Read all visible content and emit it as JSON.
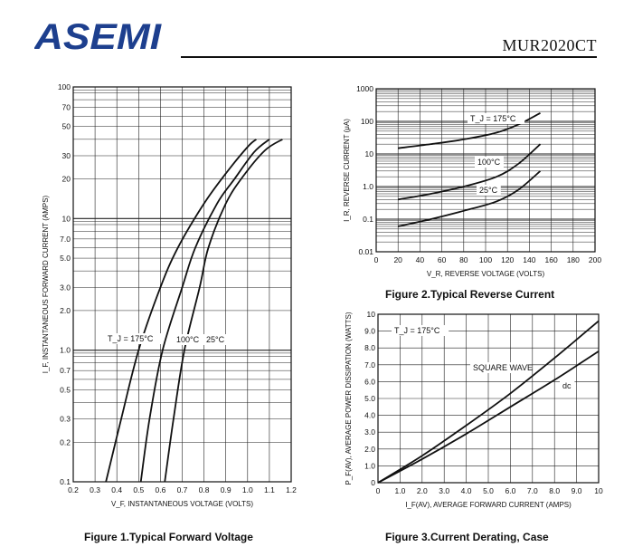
{
  "header": {
    "logo_text": "ASEMI",
    "part_number": "MUR2020CT"
  },
  "charts": [
    {
      "type": "line",
      "caption": "Figure 1.Typical Forward Voltage",
      "xlabel": "V_F, INSTANTANEOUS VOLTAGE (VOLTS)",
      "ylabel": "I_F, INSTANTANEOUS FORWARD CURRENT (AMPS)",
      "xlim": [
        0.2,
        1.2
      ],
      "ylim": [
        0.1,
        100
      ],
      "yscale": "log",
      "xticks": [
        "0.2",
        "0.3",
        "0.4",
        "0.5",
        "0.6",
        "0.7",
        "0.8",
        "0.9",
        "1.0",
        "1.1",
        "1.2"
      ],
      "yticks": [
        "100",
        "70",
        "50",
        "30",
        "20",
        "10",
        "7.0",
        "5.0",
        "3.0",
        "2.0",
        "1.0",
        "0.7",
        "0.5",
        "0.3",
        "0.2",
        "0.1"
      ],
      "series": [
        {
          "name": "T_J = 175°C",
          "points": [
            [
              0.35,
              0.1
            ],
            [
              0.42,
              0.3
            ],
            [
              0.5,
              1.0
            ],
            [
              0.6,
              3.0
            ],
            [
              0.68,
              6.0
            ],
            [
              0.8,
              13.0
            ],
            [
              0.9,
              22.0
            ],
            [
              1.0,
              35.0
            ],
            [
              1.04,
              40.0
            ]
          ]
        },
        {
          "name": "100°C",
          "points": [
            [
              0.51,
              0.1
            ],
            [
              0.55,
              0.3
            ],
            [
              0.61,
              1.0
            ],
            [
              0.7,
              3.0
            ],
            [
              0.76,
              6.0
            ],
            [
              0.86,
              13.0
            ],
            [
              0.94,
              20.0
            ],
            [
              1.03,
              32.0
            ],
            [
              1.1,
              40.0
            ]
          ]
        },
        {
          "name": "25°C",
          "points": [
            [
              0.62,
              0.1
            ],
            [
              0.66,
              0.3
            ],
            [
              0.71,
              1.0
            ],
            [
              0.78,
              3.0
            ],
            [
              0.82,
              6.0
            ],
            [
              0.9,
              13.0
            ],
            [
              0.98,
              21.0
            ],
            [
              1.08,
              33.0
            ],
            [
              1.16,
              40.0
            ]
          ]
        }
      ],
      "annotations": [
        "T_J = 175°C",
        "100°C",
        "25°C"
      ]
    },
    {
      "type": "line",
      "caption": "Figure 2.Typical Reverse Current",
      "xlabel": "V_R, REVERSE VOLTAGE (VOLTS)",
      "ylabel": "I_R, REVERSE CURRENT (μA)",
      "xlim": [
        0,
        200
      ],
      "ylim": [
        0.01,
        1000
      ],
      "yscale": "log",
      "xticks": [
        "0",
        "20",
        "40",
        "60",
        "80",
        "100",
        "120",
        "140",
        "160",
        "180",
        "200"
      ],
      "yticks": [
        "1000",
        "100",
        "10",
        "1.0",
        "0.1",
        "0.01"
      ],
      "series": [
        {
          "name": "T_J = 175°C",
          "points": [
            [
              20,
              15
            ],
            [
              50,
              20
            ],
            [
              80,
              28
            ],
            [
              110,
              45
            ],
            [
              130,
              80
            ],
            [
              150,
              180
            ]
          ]
        },
        {
          "name": "100°C",
          "points": [
            [
              20,
              0.4
            ],
            [
              50,
              0.6
            ],
            [
              80,
              1.0
            ],
            [
              110,
              2.0
            ],
            [
              130,
              5.0
            ],
            [
              150,
              20
            ]
          ]
        },
        {
          "name": "25°C",
          "points": [
            [
              20,
              0.06
            ],
            [
              50,
              0.1
            ],
            [
              80,
              0.18
            ],
            [
              110,
              0.35
            ],
            [
              130,
              0.8
            ],
            [
              150,
              3.0
            ]
          ]
        }
      ],
      "annotations": [
        "T_J = 175°C",
        "100°C",
        "25°C"
      ]
    },
    {
      "type": "line",
      "caption": "Figure 3.Current Derating, Case",
      "xlabel": "I_F(AV), AVERAGE FORWARD CURRENT (AMPS)",
      "ylabel": "P_F(AV), AVERAGE POWER DISSIPATION (WATTS)",
      "xlim": [
        0,
        10
      ],
      "ylim": [
        0,
        10
      ],
      "xticks": [
        "0",
        "1.0",
        "2.0",
        "3.0",
        "4.0",
        "5.0",
        "6.0",
        "7.0",
        "8.0",
        "9.0",
        "10"
      ],
      "yticks": [
        "10",
        "9.0",
        "8.0",
        "7.0",
        "6.0",
        "5.0",
        "4.0",
        "3.0",
        "2.0",
        "1.0",
        "0"
      ],
      "series": [
        {
          "name": "SQUARE WAVE",
          "points": [
            [
              0,
              0
            ],
            [
              2,
              1.6
            ],
            [
              4,
              3.4
            ],
            [
              6,
              5.3
            ],
            [
              8,
              7.4
            ],
            [
              10,
              9.6
            ]
          ]
        },
        {
          "name": "dc",
          "points": [
            [
              0,
              0
            ],
            [
              2,
              1.4
            ],
            [
              4,
              2.9
            ],
            [
              6,
              4.5
            ],
            [
              8,
              6.1
            ],
            [
              10,
              7.8
            ]
          ]
        }
      ],
      "annotations": [
        "T_J = 175°C",
        "SQUARE WAVE",
        "dc"
      ]
    }
  ],
  "chart_data": [
    {
      "type": "line",
      "title": "Figure 1.Typical Forward Voltage",
      "xlabel": "V_F, INSTANTANEOUS VOLTAGE (VOLTS)",
      "ylabel": "I_F, INSTANTANEOUS FORWARD CURRENT (AMPS)",
      "xlim": [
        0.2,
        1.2
      ],
      "ylim": [
        0.1,
        100
      ],
      "yscale": "log",
      "grid": true,
      "series": [
        {
          "name": "T_J = 175°C",
          "x": [
            0.35,
            0.42,
            0.5,
            0.6,
            0.68,
            0.8,
            0.9,
            1.0,
            1.04
          ],
          "y": [
            0.1,
            0.3,
            1.0,
            3.0,
            6.0,
            13.0,
            22.0,
            35.0,
            40.0
          ]
        },
        {
          "name": "100°C",
          "x": [
            0.51,
            0.55,
            0.61,
            0.7,
            0.76,
            0.86,
            0.94,
            1.03,
            1.1
          ],
          "y": [
            0.1,
            0.3,
            1.0,
            3.0,
            6.0,
            13.0,
            20.0,
            32.0,
            40.0
          ]
        },
        {
          "name": "25°C",
          "x": [
            0.62,
            0.66,
            0.71,
            0.78,
            0.82,
            0.9,
            0.98,
            1.08,
            1.16
          ],
          "y": [
            0.1,
            0.3,
            1.0,
            3.0,
            6.0,
            13.0,
            21.0,
            33.0,
            40.0
          ]
        }
      ]
    },
    {
      "type": "line",
      "title": "Figure 2.Typical Reverse Current",
      "xlabel": "V_R, REVERSE VOLTAGE (VOLTS)",
      "ylabel": "I_R, REVERSE CURRENT (μA)",
      "xlim": [
        0,
        200
      ],
      "ylim": [
        0.01,
        1000
      ],
      "yscale": "log",
      "grid": true,
      "series": [
        {
          "name": "T_J = 175°C",
          "x": [
            20,
            50,
            80,
            110,
            130,
            150
          ],
          "y": [
            15,
            20,
            28,
            45,
            80,
            180
          ]
        },
        {
          "name": "100°C",
          "x": [
            20,
            50,
            80,
            110,
            130,
            150
          ],
          "y": [
            0.4,
            0.6,
            1.0,
            2.0,
            5.0,
            20
          ]
        },
        {
          "name": "25°C",
          "x": [
            20,
            50,
            80,
            110,
            130,
            150
          ],
          "y": [
            0.06,
            0.1,
            0.18,
            0.35,
            0.8,
            3.0
          ]
        }
      ]
    },
    {
      "type": "line",
      "title": "Figure 3.Current Derating, Case",
      "xlabel": "I_F(AV), AVERAGE FORWARD CURRENT (AMPS)",
      "ylabel": "P_F(AV), AVERAGE POWER DISSIPATION (WATTS)",
      "xlim": [
        0,
        10
      ],
      "ylim": [
        0,
        10
      ],
      "grid": true,
      "series": [
        {
          "name": "SQUARE WAVE",
          "x": [
            0,
            2,
            4,
            6,
            8,
            10
          ],
          "y": [
            0,
            1.6,
            3.4,
            5.3,
            7.4,
            9.6
          ]
        },
        {
          "name": "dc",
          "x": [
            0,
            2,
            4,
            6,
            8,
            10
          ],
          "y": [
            0,
            1.4,
            2.9,
            4.5,
            6.1,
            7.8
          ]
        }
      ]
    }
  ]
}
